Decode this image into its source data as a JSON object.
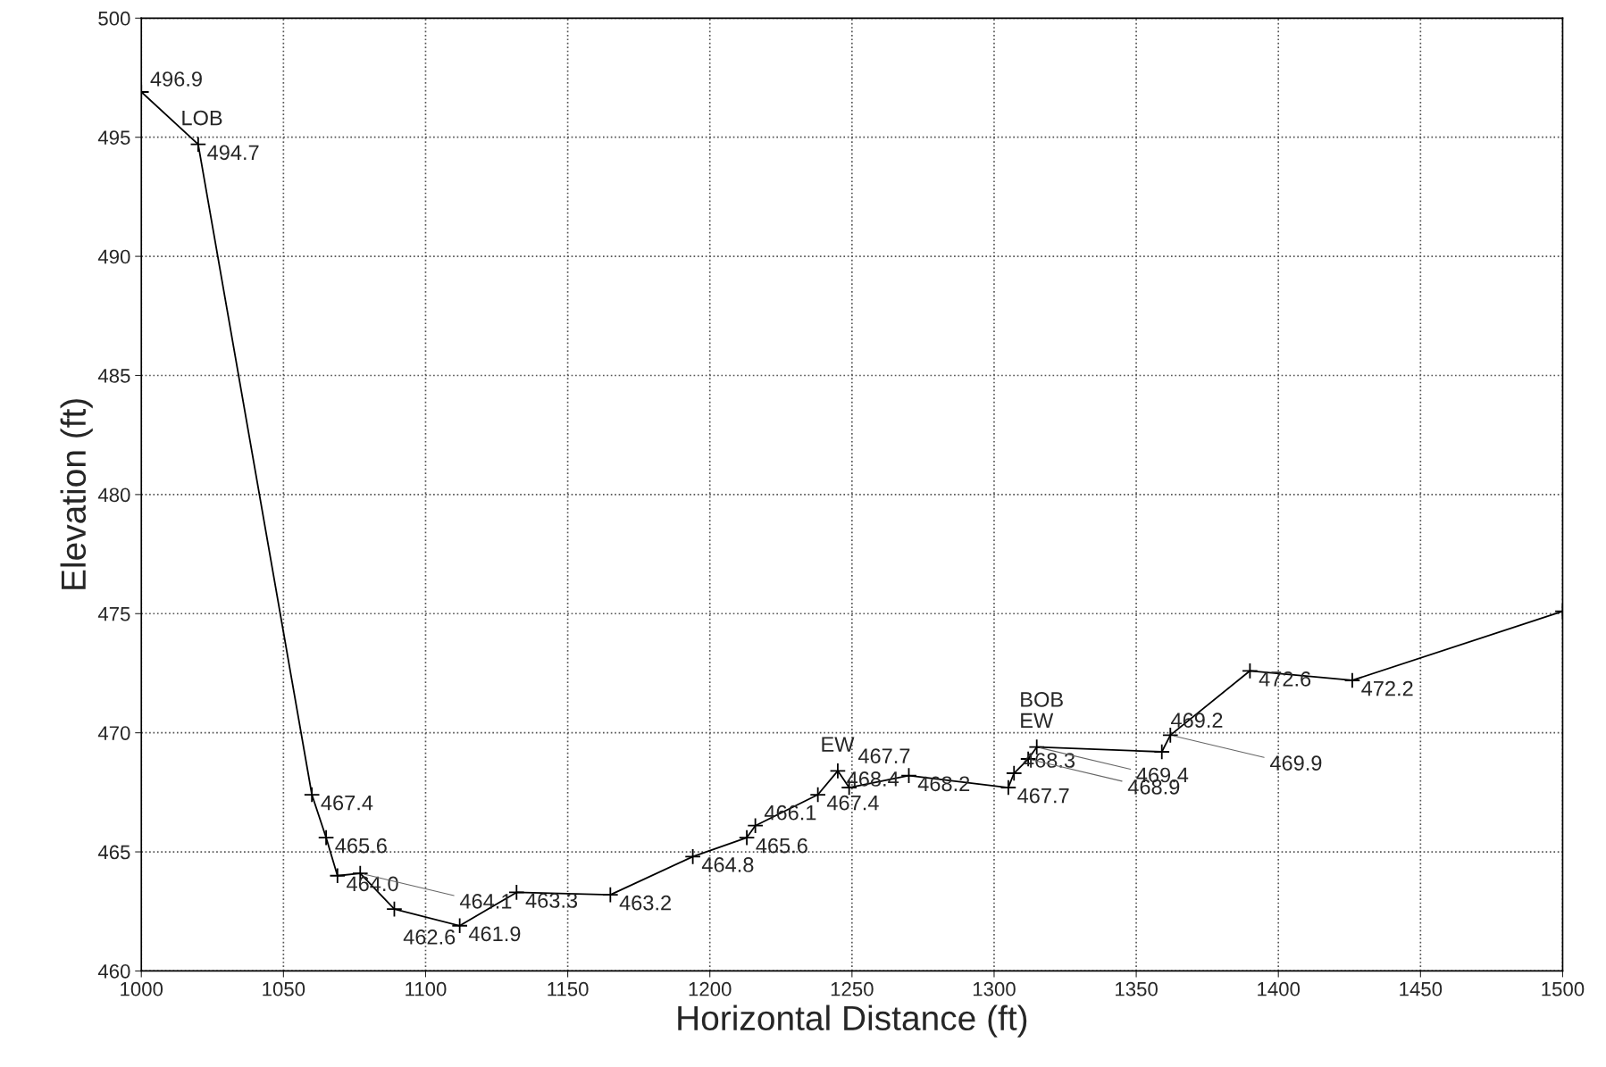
{
  "chart_data": {
    "type": "line",
    "xlabel": "Horizontal Distance (ft)",
    "ylabel": "Elevation (ft)",
    "x": [
      1000,
      1020,
      1060,
      1065,
      1069,
      1077,
      1089,
      1112,
      1132,
      1165,
      1194,
      1213,
      1216,
      1238,
      1245,
      1249,
      1270,
      1305,
      1307,
      1312,
      1315,
      1359,
      1362,
      1390,
      1426,
      1500
    ],
    "values": [
      496.9,
      494.7,
      467.4,
      465.6,
      464.0,
      464.1,
      462.6,
      461.9,
      463.3,
      463.2,
      464.8,
      465.6,
      466.1,
      467.4,
      468.4,
      467.7,
      468.2,
      467.7,
      468.3,
      468.9,
      469.4,
      469.2,
      469.9,
      472.6,
      472.2,
      475.1
    ],
    "value_labels": [
      "496.9",
      "494.7",
      "467.4",
      "465.6",
      "464.0",
      "464.1",
      "462.6",
      "461.9",
      "463.3",
      "463.2",
      "464.8",
      "465.6",
      "466.1",
      "467.4",
      "468.4",
      "467.7",
      "468.2",
      "467.7",
      "468.3",
      "468.9",
      "469.4",
      "469.2",
      "469.9",
      "472.6",
      "472.2",
      null
    ],
    "color": "#000000",
    "marker": "cross",
    "line_style": "solid",
    "grid": true,
    "xlim": [
      1000,
      1500
    ],
    "ylim": [
      460,
      500
    ],
    "xticks": [
      1000,
      1050,
      1100,
      1150,
      1200,
      1250,
      1300,
      1350,
      1400,
      1450,
      1500
    ],
    "yticks": [
      460,
      465,
      470,
      475,
      480,
      485,
      490,
      495,
      500
    ],
    "annotations": [
      {
        "text": "LOB",
        "x": 1020,
        "y": 494.7
      },
      {
        "text": "EW",
        "x": 1245,
        "y": 468.4
      },
      {
        "text": "EW",
        "x": 1315,
        "y": 469.4
      },
      {
        "text": "BOB",
        "x": 1315,
        "y": 469.4
      }
    ]
  }
}
